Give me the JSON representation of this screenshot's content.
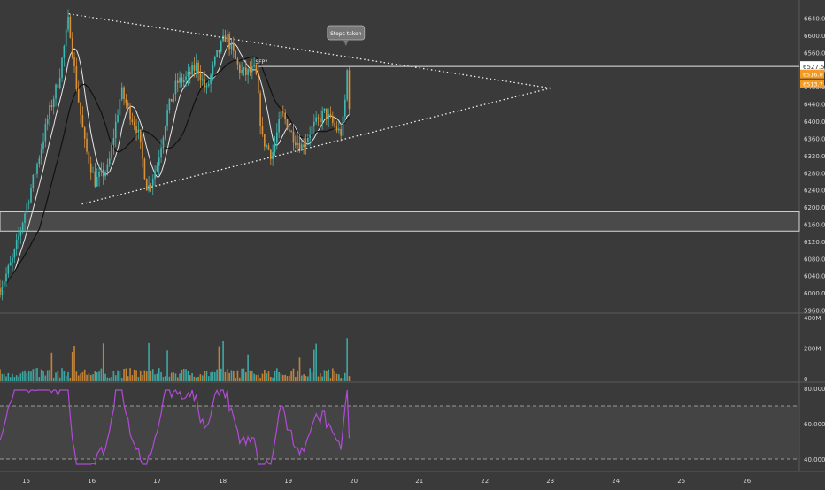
{
  "chart_data": {
    "type": "candlestick",
    "price_axis": {
      "ticks": [
        "6640.0",
        "6600.0",
        "6560.0",
        "6520.0",
        "6480.0",
        "6440.0",
        "6400.0",
        "6360.0",
        "6320.0",
        "6280.0",
        "6240.0",
        "6200.0",
        "6160.0",
        "6120.0",
        "6080.0",
        "6040.0",
        "6000.0",
        "5960.0"
      ],
      "range": [
        5955,
        6672
      ]
    },
    "time_axis": {
      "ticks": [
        "15",
        "16",
        "17",
        "18",
        "19",
        "20",
        "21",
        "22",
        "23",
        "24",
        "25",
        "26"
      ],
      "range": [
        14.6,
        26.8
      ]
    },
    "price_labels": {
      "current": "6527.5",
      "orange_1": "6516.0",
      "orange_2": "6513.7"
    },
    "annotations": {
      "callout": "Stops taken",
      "sfp": "SFP?"
    },
    "triangle": {
      "upper_line": [
        [
          15.65,
          6650
        ],
        [
          23.0,
          6477
        ]
      ],
      "lower_line": [
        [
          15.85,
          6207
        ],
        [
          23.0,
          6477
        ]
      ],
      "horizontal_level": 6527.5
    },
    "support_zone": [
      6144,
      6189
    ],
    "volume_axis": {
      "ticks": [
        "400M",
        "200M",
        "0"
      ],
      "max": 400
    },
    "rsi_axis": {
      "ticks": [
        "80.0000",
        "60.0000",
        "40.0000"
      ],
      "range": [
        34,
        82
      ],
      "bands": [
        70,
        40
      ]
    },
    "colors": {
      "background": "#3a3a3a",
      "up": "#3fb9b4",
      "down": "#d9913a",
      "rsi": "#b04bd6",
      "highlight": "#f29a22",
      "axis_text": "#d6d6d6"
    }
  }
}
